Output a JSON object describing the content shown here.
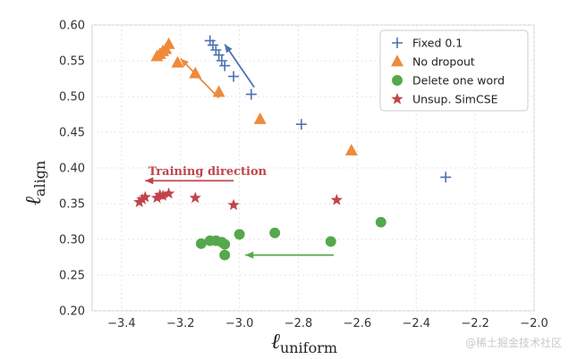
{
  "chart_data": {
    "type": "scatter",
    "xlabel_main": "ℓ",
    "xlabel_sub": "uniform",
    "ylabel_main": "ℓ",
    "ylabel_sub": "align",
    "xlim": [
      -3.5,
      -2.0
    ],
    "ylim": [
      0.2,
      0.6
    ],
    "xticks": [
      -3.4,
      -3.2,
      -3.0,
      -2.8,
      -2.6,
      -2.4,
      -2.2,
      -2.0
    ],
    "yticks": [
      0.2,
      0.25,
      0.3,
      0.35,
      0.4,
      0.45,
      0.5,
      0.55,
      0.6
    ],
    "xtick_labels": [
      "−3.4",
      "−3.2",
      "−3.0",
      "−2.8",
      "−2.6",
      "−2.4",
      "−2.2",
      "−2.0"
    ],
    "ytick_labels": [
      "0.20",
      "0.25",
      "0.30",
      "0.35",
      "0.40",
      "0.45",
      "0.50",
      "0.55",
      "0.60"
    ],
    "grid": true,
    "legend_position": "top-right",
    "series": [
      {
        "name": "Fixed 0.1",
        "marker": "plus",
        "color": "#4c72b0",
        "points": [
          [
            -3.1,
            0.578
          ],
          [
            -3.09,
            0.572
          ],
          [
            -3.08,
            0.565
          ],
          [
            -3.07,
            0.558
          ],
          [
            -3.06,
            0.55
          ],
          [
            -3.05,
            0.543
          ],
          [
            -3.02,
            0.528
          ],
          [
            -2.96,
            0.503
          ],
          [
            -2.79,
            0.461
          ],
          [
            -2.3,
            0.387
          ]
        ]
      },
      {
        "name": "No dropout",
        "marker": "triangle",
        "color": "#ee8a3a",
        "points": [
          [
            -3.28,
            0.556
          ],
          [
            -3.27,
            0.559
          ],
          [
            -3.26,
            0.563
          ],
          [
            -3.25,
            0.566
          ],
          [
            -3.24,
            0.573
          ],
          [
            -3.21,
            0.547
          ],
          [
            -3.15,
            0.532
          ],
          [
            -3.07,
            0.506
          ],
          [
            -2.93,
            0.468
          ],
          [
            -2.62,
            0.424
          ]
        ]
      },
      {
        "name": "Delete one word",
        "marker": "circle",
        "color": "#55a84b",
        "points": [
          [
            -3.13,
            0.294
          ],
          [
            -3.1,
            0.298
          ],
          [
            -3.08,
            0.298
          ],
          [
            -3.06,
            0.296
          ],
          [
            -3.05,
            0.293
          ],
          [
            -3.05,
            0.278
          ],
          [
            -3.0,
            0.307
          ],
          [
            -2.88,
            0.309
          ],
          [
            -2.69,
            0.297
          ],
          [
            -2.52,
            0.324
          ]
        ]
      },
      {
        "name": "Unsup. SimCSE",
        "marker": "star",
        "color": "#c0454b",
        "points": [
          [
            -3.34,
            0.352
          ],
          [
            -3.33,
            0.356
          ],
          [
            -3.32,
            0.359
          ],
          [
            -3.28,
            0.358
          ],
          [
            -3.27,
            0.362
          ],
          [
            -3.26,
            0.361
          ],
          [
            -3.24,
            0.364
          ],
          [
            -3.15,
            0.358
          ],
          [
            -3.02,
            0.348
          ],
          [
            -2.67,
            0.355
          ]
        ]
      }
    ],
    "arrows": [
      {
        "color": "#4c72b0",
        "from": [
          -2.95,
          0.513
        ],
        "to": [
          -3.05,
          0.573
        ]
      },
      {
        "color": "#ee8a3a",
        "from": [
          -3.07,
          0.498
        ],
        "to": [
          -3.2,
          0.553
        ]
      },
      {
        "color": "#55a84b",
        "from": [
          -2.68,
          0.278
        ],
        "to": [
          -2.98,
          0.278
        ]
      },
      {
        "color": "#c0454b",
        "from": [
          -3.02,
          0.382
        ],
        "to": [
          -3.32,
          0.382
        ]
      }
    ],
    "annotations": [
      {
        "text": "Training direction",
        "color": "#c0454b",
        "x": -3.31,
        "y": 0.39
      }
    ]
  },
  "watermark": "@稀土掘金技术社区"
}
